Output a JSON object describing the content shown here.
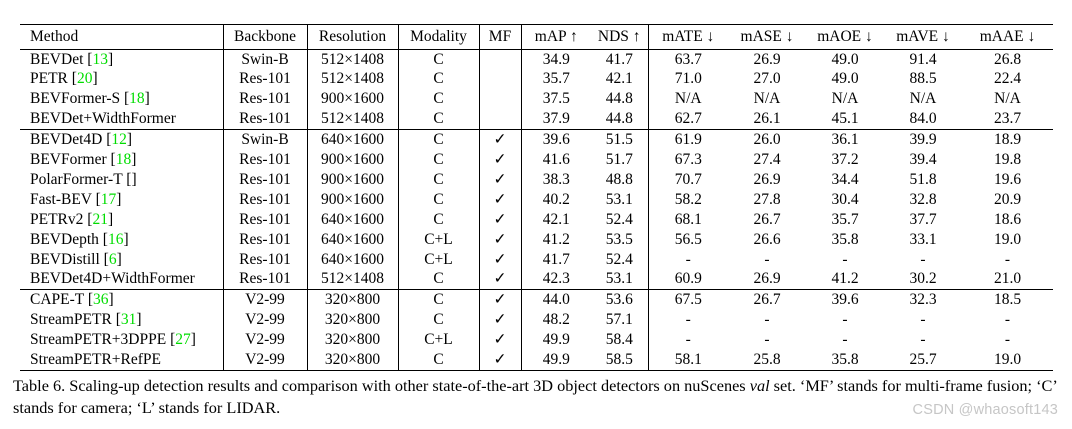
{
  "colors": {
    "citation_green": "#00dd00",
    "rule_black": "#000000",
    "watermark_gray": "#c6c6c6"
  },
  "table": {
    "checkmark_glyph": "✓",
    "headers": [
      "Method",
      "Backbone",
      "Resolution",
      "Modality",
      "MF",
      "mAP ↑",
      "NDS ↑",
      "mATE ↓",
      "mASE ↓",
      "mAOE ↓",
      "mAVE ↓",
      "mAAE ↓"
    ],
    "groups": [
      {
        "rows": [
          {
            "method": "BEVDet",
            "cite": "13",
            "backbone": "Swin-B",
            "resolution": "512×1408",
            "modality": "C",
            "mf": false,
            "values": [
              "34.9",
              "41.7",
              "63.7",
              "26.9",
              "49.0",
              "91.4",
              "26.8"
            ]
          },
          {
            "method": "PETR",
            "cite": "20",
            "backbone": "Res-101",
            "resolution": "512×1408",
            "modality": "C",
            "mf": false,
            "values": [
              "35.7",
              "42.1",
              "71.0",
              "27.0",
              "49.0",
              "88.5",
              "22.4"
            ]
          },
          {
            "method": "BEVFormer-S",
            "cite": "18",
            "backbone": "Res-101",
            "resolution": "900×1600",
            "modality": "C",
            "mf": false,
            "values": [
              "37.5",
              "44.8",
              "N/A",
              "N/A",
              "N/A",
              "N/A",
              "N/A"
            ]
          },
          {
            "method": "BEVDet+WidthFormer",
            "cite": null,
            "backbone": "Res-101",
            "resolution": "512×1408",
            "modality": "C",
            "mf": false,
            "values": [
              "37.9",
              "44.8",
              "62.7",
              "26.1",
              "45.1",
              "84.0",
              "23.7"
            ]
          }
        ]
      },
      {
        "rows": [
          {
            "method": "BEVDet4D",
            "cite": "12",
            "backbone": "Swin-B",
            "resolution": "640×1600",
            "modality": "C",
            "mf": true,
            "values": [
              "39.6",
              "51.5",
              "61.9",
              "26.0",
              "36.1",
              "39.9",
              "18.9"
            ]
          },
          {
            "method": "BEVFormer",
            "cite": "18",
            "backbone": "Res-101",
            "resolution": "900×1600",
            "modality": "C",
            "mf": true,
            "values": [
              "41.6",
              "51.7",
              "67.3",
              "27.4",
              "37.2",
              "39.4",
              "19.8"
            ]
          },
          {
            "method": "PolarFormer-T",
            "cite": "",
            "backbone": "Res-101",
            "resolution": "900×1600",
            "modality": "C",
            "mf": true,
            "values": [
              "38.3",
              "48.8",
              "70.7",
              "26.9",
              "34.4",
              "51.8",
              "19.6"
            ]
          },
          {
            "method": "Fast-BEV",
            "cite": "17",
            "backbone": "Res-101",
            "resolution": "900×1600",
            "modality": "C",
            "mf": true,
            "values": [
              "40.2",
              "53.1",
              "58.2",
              "27.8",
              "30.4",
              "32.8",
              "20.9"
            ]
          },
          {
            "method": "PETRv2",
            "cite": "21",
            "backbone": "Res-101",
            "resolution": "640×1600",
            "modality": "C",
            "mf": true,
            "values": [
              "42.1",
              "52.4",
              "68.1",
              "26.7",
              "35.7",
              "37.7",
              "18.6"
            ]
          },
          {
            "method": "BEVDepth",
            "cite": "16",
            "backbone": "Res-101",
            "resolution": "640×1600",
            "modality": "C+L",
            "mf": true,
            "values": [
              "41.2",
              "53.5",
              "56.5",
              "26.6",
              "35.8",
              "33.1",
              "19.0"
            ]
          },
          {
            "method": "BEVDistill",
            "cite": "6",
            "backbone": "Res-101",
            "resolution": "640×1600",
            "modality": "C+L",
            "mf": true,
            "values": [
              "41.7",
              "52.4",
              "-",
              "-",
              "-",
              "-",
              "-"
            ]
          },
          {
            "method": "BEVDet4D+WidthFormer",
            "cite": null,
            "backbone": "Res-101",
            "resolution": "512×1408",
            "modality": "C",
            "mf": true,
            "values": [
              "42.3",
              "53.1",
              "60.9",
              "26.9",
              "41.2",
              "30.2",
              "21.0"
            ]
          }
        ]
      },
      {
        "rows": [
          {
            "method": "CAPE-T",
            "cite": "36",
            "backbone": "V2-99",
            "resolution": "320×800",
            "modality": "C",
            "mf": true,
            "values": [
              "44.0",
              "53.6",
              "67.5",
              "26.7",
              "39.6",
              "32.3",
              "18.5"
            ]
          },
          {
            "method": "StreamPETR",
            "cite": "31",
            "backbone": "V2-99",
            "resolution": "320×800",
            "modality": "C",
            "mf": true,
            "values": [
              "48.2",
              "57.1",
              "-",
              "-",
              "-",
              "-",
              "-"
            ]
          },
          {
            "method": "StreamPETR+3DPPE",
            "cite": "27",
            "backbone": "V2-99",
            "resolution": "320×800",
            "modality": "C+L",
            "mf": true,
            "values": [
              "49.9",
              "58.4",
              "-",
              "-",
              "-",
              "-",
              "-"
            ]
          },
          {
            "method": "StreamPETR+RefPE",
            "cite": null,
            "backbone": "V2-99",
            "resolution": "320×800",
            "modality": "C",
            "mf": true,
            "values": [
              "49.9",
              "58.5",
              "58.1",
              "25.8",
              "35.8",
              "25.7",
              "19.0"
            ]
          }
        ]
      }
    ]
  },
  "caption": {
    "part1": "Table 6. Scaling-up detection results and comparison with other state-of-the-art 3D object detectors on nuScenes ",
    "val_word": "val",
    "part2": " set. ‘MF’ stands for multi-frame fusion; ‘C’ stands for camera; ‘L’ stands for LIDAR."
  },
  "watermark": "CSDN @whaosoft143"
}
